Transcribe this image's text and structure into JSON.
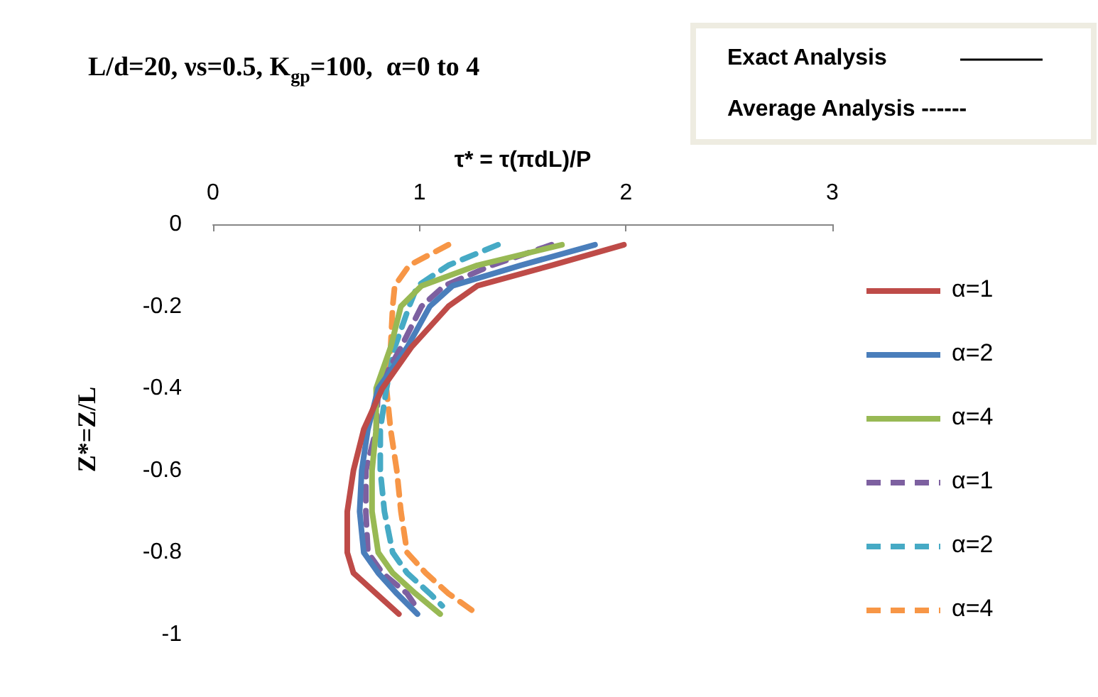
{
  "chart_data": {
    "type": "line",
    "title": "L/d=20, νs=0.5, K$_{gp}$=100,  α=0 to 4",
    "xlabel": "τ* = τ(πdL)/P",
    "ylabel": "Z*=Z/L",
    "annotations": [
      "Exact Analysis",
      "Average Analysis ------"
    ],
    "xlim": [
      0,
      3
    ],
    "xticks": [
      0,
      1,
      2,
      3
    ],
    "ylim": [
      -1,
      0
    ],
    "yticks": [
      -1,
      -0.8,
      -0.6,
      -0.4,
      -0.2,
      0
    ],
    "grid": false,
    "legend": "right",
    "marker": "none",
    "series": [
      {
        "name": "α=1",
        "color": "#be4b48",
        "line_style": "solid",
        "x": [
          1.99,
          1.64,
          1.28,
          1.14,
          0.96,
          0.82,
          0.73,
          0.68,
          0.65,
          0.65,
          0.68,
          0.79,
          0.9
        ],
        "values": [
          -0.05,
          -0.1,
          -0.15,
          -0.2,
          -0.3,
          -0.4,
          -0.5,
          -0.6,
          -0.7,
          -0.8,
          -0.85,
          -0.9,
          -0.95
        ]
      },
      {
        "name": "α=2",
        "color": "#4a7ebb",
        "line_style": "solid",
        "x": [
          1.85,
          1.49,
          1.16,
          1.05,
          0.94,
          0.8,
          0.75,
          0.72,
          0.71,
          0.73,
          0.8,
          0.89,
          0.99
        ],
        "values": [
          -0.05,
          -0.1,
          -0.15,
          -0.2,
          -0.3,
          -0.4,
          -0.5,
          -0.6,
          -0.7,
          -0.8,
          -0.85,
          -0.9,
          -0.95
        ]
      },
      {
        "name": "α=4",
        "color": "#98b954",
        "line_style": "solid",
        "x": [
          1.69,
          1.28,
          1.01,
          0.91,
          0.86,
          0.79,
          0.79,
          0.77,
          0.77,
          0.8,
          0.87,
          0.98,
          1.1
        ],
        "values": [
          -0.05,
          -0.1,
          -0.15,
          -0.2,
          -0.3,
          -0.4,
          -0.5,
          -0.6,
          -0.7,
          -0.8,
          -0.85,
          -0.9,
          -0.95
        ]
      },
      {
        "name": "α=1",
        "color": "#7d60a0",
        "line_style": "dashed",
        "x": [
          1.64,
          1.35,
          1.12,
          1.01,
          0.91,
          0.8,
          0.79,
          0.74,
          0.74,
          0.75,
          0.82,
          0.94,
          0.98
        ],
        "values": [
          -0.05,
          -0.1,
          -0.15,
          -0.2,
          -0.3,
          -0.4,
          -0.5,
          -0.6,
          -0.7,
          -0.8,
          -0.85,
          -0.9,
          -0.93
        ]
      },
      {
        "name": "α=2",
        "color": "#46aac5",
        "line_style": "dashed",
        "x": [
          1.38,
          1.14,
          0.99,
          0.95,
          0.88,
          0.84,
          0.81,
          0.81,
          0.83,
          0.87,
          0.94,
          1.05,
          1.11
        ],
        "values": [
          -0.05,
          -0.1,
          -0.15,
          -0.2,
          -0.3,
          -0.4,
          -0.5,
          -0.6,
          -0.7,
          -0.8,
          -0.85,
          -0.9,
          -0.93
        ]
      },
      {
        "name": "α=4",
        "color": "#f79646",
        "line_style": "dashed",
        "x": [
          1.14,
          0.95,
          0.88,
          0.87,
          0.86,
          0.84,
          0.86,
          0.89,
          0.91,
          0.94,
          1.03,
          1.14,
          1.28
        ],
        "values": [
          -0.05,
          -0.1,
          -0.15,
          -0.2,
          -0.3,
          -0.4,
          -0.5,
          -0.6,
          -0.7,
          -0.8,
          -0.85,
          -0.9,
          -0.95
        ]
      }
    ]
  }
}
